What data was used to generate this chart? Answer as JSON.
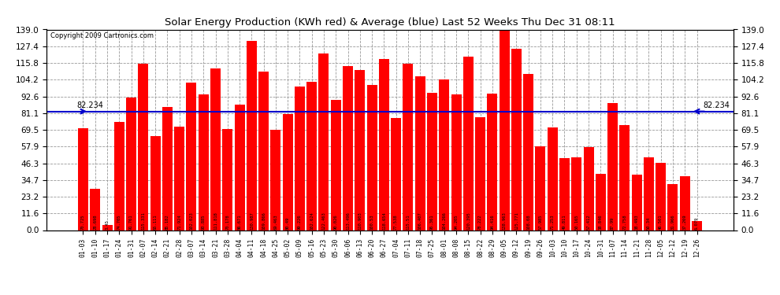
{
  "title": "Solar Energy Production (KWh red) & Average (blue) Last 52 Weeks Thu Dec 31 08:11",
  "copyright": "Copyright 2009 Cartronics.com",
  "average": 82.234,
  "bar_color": "#ff0000",
  "avg_line_color": "#0000cc",
  "background_color": "#ffffff",
  "plot_bg_color": "#ffffff",
  "grid_color": "#aaaaaa",
  "ylim": [
    0,
    139.0
  ],
  "yticks": [
    0.0,
    11.6,
    23.2,
    34.7,
    46.3,
    57.9,
    69.5,
    81.1,
    92.6,
    104.2,
    115.8,
    127.4,
    139.0
  ],
  "categories": [
    "01-03",
    "01-10",
    "01-17",
    "01-24",
    "01-31",
    "02-07",
    "02-14",
    "02-21",
    "02-28",
    "03-07",
    "03-14",
    "03-21",
    "03-28",
    "04-04",
    "04-11",
    "04-18",
    "04-25",
    "05-02",
    "05-09",
    "05-16",
    "05-23",
    "05-30",
    "06-06",
    "06-13",
    "06-20",
    "06-27",
    "07-04",
    "07-11",
    "07-18",
    "07-25",
    "08-01",
    "08-08",
    "08-15",
    "08-22",
    "08-29",
    "09-05",
    "09-12",
    "09-19",
    "09-26",
    "10-03",
    "10-10",
    "10-17",
    "10-24",
    "10-31",
    "11-07",
    "11-14",
    "11-21",
    "11-28",
    "12-05",
    "12-12",
    "12-19",
    "12-26"
  ],
  "values": [
    70.725,
    28.698,
    3.45,
    74.705,
    91.761,
    115.331,
    65.111,
    85.182,
    71.924,
    102.023,
    93.885,
    111.818,
    70.178,
    86.671,
    130.987,
    109.866,
    69.463,
    80.49,
    99.226,
    102.624,
    122.463,
    90.026,
    113.496,
    110.903,
    100.53,
    118.654,
    77.538,
    115.51,
    106.407,
    95.361,
    104.266,
    94.205,
    120.395,
    78.222,
    94.416,
    138.963,
    125.771,
    108.08,
    57.985,
    71.253,
    49.811,
    50.165,
    57.412,
    38.846,
    87.99,
    72.758,
    38.493,
    50.34,
    46.501,
    31.966,
    37.269,
    6.079
  ]
}
